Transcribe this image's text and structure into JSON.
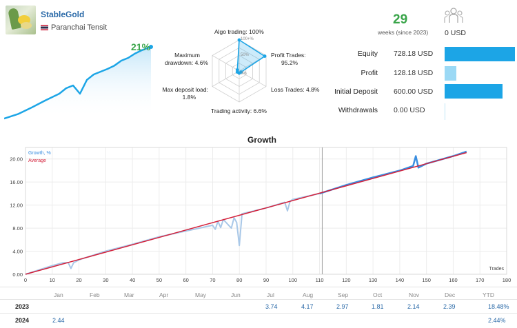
{
  "profile": {
    "name": "StableGold",
    "owner": "Paranchai Tensit"
  },
  "header": {
    "growth_pct": "21%",
    "weeks": "29",
    "weeks_label": "weeks (since 2023)",
    "subscribers": "0 USD"
  },
  "stats": [
    {
      "label": "Equity",
      "value": "728.18 USD",
      "ratio": 1.0
    },
    {
      "label": "Profit",
      "value": "128.18 USD",
      "ratio": 0.17
    },
    {
      "label": "Initial Deposit",
      "value": "600.00 USD",
      "ratio": 0.82
    },
    {
      "label": "Withdrawals",
      "value": "0.00 USD",
      "ratio": 0.0
    }
  ],
  "radar": {
    "algo_trading": "Algo trading: 100%",
    "profit_trades_1": "Profit Trades:",
    "profit_trades_2": "95.2%",
    "loss_trades": "Loss Trades: 4.8%",
    "trading_activity": "Trading activity: 6.6%",
    "max_deposit_load_1": "Max deposit load:",
    "max_deposit_load_2": "1.8%",
    "max_drawdown_1": "Maximum",
    "max_drawdown_2": "drawdown: 4.6%",
    "scale_100": "100+%",
    "scale_50": "50%",
    "scale_0": "0%",
    "values": [
      1.0,
      0.952,
      0.048,
      0.066,
      0.018,
      0.046
    ]
  },
  "chart_data": {
    "type": "line",
    "title": "Growth",
    "xlabel": "Trades",
    "ylabel": "",
    "xlim": [
      0,
      180
    ],
    "ylim": [
      0,
      22
    ],
    "x_ticks": [
      0,
      10,
      20,
      30,
      40,
      50,
      60,
      70,
      80,
      90,
      100,
      110,
      120,
      130,
      140,
      150,
      160,
      170,
      180
    ],
    "y_ticks": [
      "0.00",
      "4.00",
      "8.00",
      "12.00",
      "16.00",
      "20.00"
    ],
    "y_tick_values": [
      0,
      4,
      8,
      12,
      16,
      20
    ],
    "legend": [
      "Growth, %",
      "Average"
    ],
    "divider_x": 111,
    "series": [
      {
        "name": "Growth, %",
        "x": [
          0,
          10,
          14,
          16,
          17,
          18,
          20,
          30,
          40,
          50,
          60,
          65,
          70,
          71,
          72,
          73,
          74,
          75,
          76,
          77,
          78,
          79,
          80,
          81,
          90,
          97,
          98,
          99,
          100,
          110,
          120,
          130,
          140,
          145,
          146,
          147,
          150,
          160,
          165
        ],
        "y": [
          0,
          1.5,
          2.0,
          2.0,
          1.0,
          2.0,
          2.5,
          4.0,
          5.2,
          6.5,
          7.5,
          8.0,
          8.5,
          7.8,
          9.2,
          8.1,
          9.5,
          9.0,
          8.5,
          8.0,
          9.8,
          9.0,
          5.0,
          10.5,
          11.5,
          12.5,
          11.0,
          12.7,
          13.0,
          14.0,
          15.5,
          16.8,
          18.0,
          18.8,
          20.5,
          18.5,
          19.2,
          20.5,
          21.3
        ]
      },
      {
        "name": "Average",
        "x": [
          0,
          165
        ],
        "y": [
          0,
          21.1
        ]
      }
    ]
  },
  "sparkline": {
    "x": [
      0,
      20,
      40,
      60,
      80,
      90,
      100,
      110,
      120,
      130,
      140,
      150,
      160,
      170,
      180,
      190,
      200,
      213
    ],
    "y": [
      0,
      0.8,
      2.0,
      3.3,
      4.5,
      5.5,
      6.0,
      4.5,
      7.0,
      8.0,
      8.5,
      9.0,
      9.6,
      10.5,
      11.0,
      11.8,
      12.4,
      13.0
    ]
  },
  "table": {
    "months": [
      "Jan",
      "Feb",
      "Mar",
      "Apr",
      "May",
      "Jun",
      "Jul",
      "Aug",
      "Sep",
      "Oct",
      "Nov",
      "Dec",
      "YTD"
    ],
    "rows": [
      {
        "year": "2023",
        "values": [
          "",
          "",
          "",
          "",
          "",
          "",
          "3.74",
          "4.17",
          "2.97",
          "1.81",
          "2.14",
          "2.39"
        ],
        "ytd": "18.48%"
      },
      {
        "year": "2024",
        "values": [
          "2.44",
          "",
          "",
          "",
          "",
          "",
          "",
          "",
          "",
          "",
          "",
          ""
        ],
        "ytd": "2.44%"
      }
    ]
  },
  "colors": {
    "growth": "#3a8ee0",
    "average": "#d4213b",
    "accent": "#1ca5e6",
    "green": "#3aa54a",
    "bar_light": "#9bd9f5"
  }
}
